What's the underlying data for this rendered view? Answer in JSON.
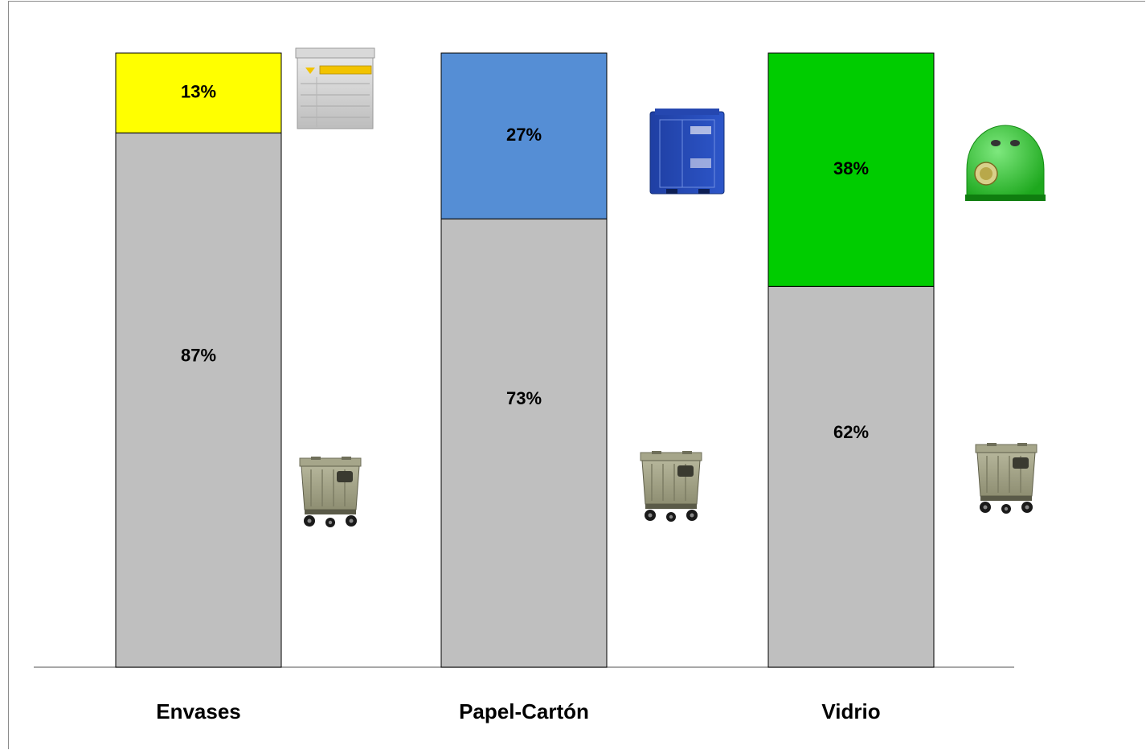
{
  "chart_data": {
    "type": "bar",
    "stacked": true,
    "normalized_percent": true,
    "categories": [
      "Envases",
      "Papel-Cartón",
      "Vidrio"
    ],
    "series": [
      {
        "color": "#bfbfbf",
        "values": [
          87,
          73,
          62
        ],
        "labels": [
          "87%",
          "73%",
          "62%"
        ]
      },
      {
        "colors": [
          "#ffff00",
          "#558ed5",
          "#00cc00"
        ],
        "values": [
          13,
          27,
          38
        ],
        "labels": [
          "13%",
          "27%",
          "38%"
        ]
      }
    ],
    "ylim": [
      0,
      100
    ],
    "grid": false,
    "legend": "none",
    "icons": {
      "top": [
        "yellow-recycling-container-icon",
        "blue-recycling-container-icon",
        "green-glass-igloo-icon"
      ],
      "bottom": [
        "wheeled-waste-bin-icon",
        "wheeled-waste-bin-icon",
        "wheeled-waste-bin-icon"
      ]
    }
  }
}
